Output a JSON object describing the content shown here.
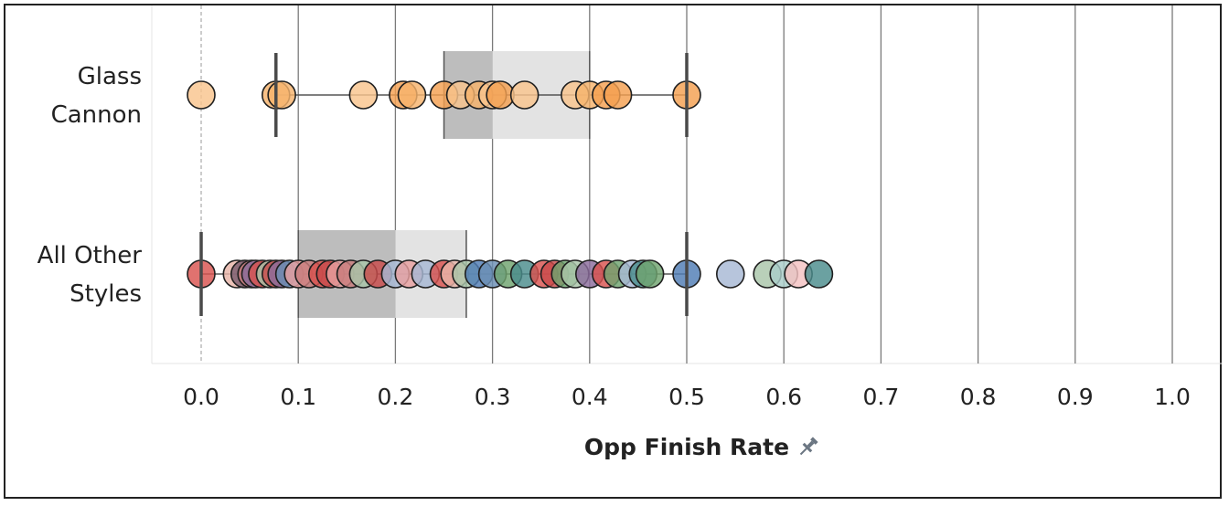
{
  "chart_data": {
    "type": "scatter",
    "subtype": "box-and-whisker with jittered dots",
    "xlabel": "Opp Finish Rate",
    "xlabel_icon": "pin-icon",
    "xlim": [
      -0.05,
      1.05
    ],
    "xticks": [
      "0.0",
      "0.1",
      "0.2",
      "0.3",
      "0.4",
      "0.5",
      "0.6",
      "0.7",
      "0.8",
      "0.9",
      "1.0"
    ],
    "xtick_values": [
      0.0,
      0.1,
      0.2,
      0.3,
      0.4,
      0.5,
      0.6,
      0.7,
      0.8,
      0.9,
      1.0
    ],
    "grid": true,
    "zero_line": "dashed",
    "categories": [
      {
        "label": [
          "Glass",
          "Cannon"
        ],
        "box": {
          "whisker_low": 0.077,
          "q1": 0.25,
          "median": 0.3,
          "q3": 0.4,
          "whisker_high": 0.5
        },
        "points": [
          {
            "x": 0.0,
            "color": "#F9C58E"
          },
          {
            "x": 0.077,
            "color": "#F7B36C"
          },
          {
            "x": 0.083,
            "color": "#F7B36C"
          },
          {
            "x": 0.167,
            "color": "#F9C58E"
          },
          {
            "x": 0.208,
            "color": "#F4A050"
          },
          {
            "x": 0.217,
            "color": "#F7B36C"
          },
          {
            "x": 0.25,
            "color": "#F4A050"
          },
          {
            "x": 0.267,
            "color": "#F9C58E"
          },
          {
            "x": 0.286,
            "color": "#F7B36C"
          },
          {
            "x": 0.3,
            "color": "#F9C58E"
          },
          {
            "x": 0.308,
            "color": "#F4A050"
          },
          {
            "x": 0.333,
            "color": "#F9C58E"
          },
          {
            "x": 0.385,
            "color": "#F9C58E"
          },
          {
            "x": 0.4,
            "color": "#F7B36C"
          },
          {
            "x": 0.417,
            "color": "#F4A050"
          },
          {
            "x": 0.429,
            "color": "#F4A050"
          },
          {
            "x": 0.5,
            "color": "#F4A050"
          }
        ]
      },
      {
        "label": [
          "All Other",
          "Styles"
        ],
        "box": {
          "whisker_low": 0.0,
          "q1": 0.1,
          "median": 0.2,
          "q3": 0.273,
          "whisker_high": 0.5
        },
        "points": [
          {
            "x": 0.0,
            "color": "#D9534F"
          },
          {
            "x": 0.037,
            "color": "#E8B4A8"
          },
          {
            "x": 0.045,
            "color": "#7A5C6E"
          },
          {
            "x": 0.052,
            "color": "#C97C7C"
          },
          {
            "x": 0.056,
            "color": "#8B6C9C"
          },
          {
            "x": 0.063,
            "color": "#D9534F"
          },
          {
            "x": 0.071,
            "color": "#A9C6A9"
          },
          {
            "x": 0.077,
            "color": "#C94C4C"
          },
          {
            "x": 0.083,
            "color": "#8B6C9C"
          },
          {
            "x": 0.091,
            "color": "#6B8FB5"
          },
          {
            "x": 0.1,
            "color": "#E8A0A0"
          },
          {
            "x": 0.111,
            "color": "#C97C7C"
          },
          {
            "x": 0.125,
            "color": "#D9534F"
          },
          {
            "x": 0.133,
            "color": "#C94C4C"
          },
          {
            "x": 0.143,
            "color": "#E8A0A0"
          },
          {
            "x": 0.154,
            "color": "#C97C7C"
          },
          {
            "x": 0.167,
            "color": "#A9C6A9"
          },
          {
            "x": 0.182,
            "color": "#C94C4C"
          },
          {
            "x": 0.2,
            "color": "#A7B8D4"
          },
          {
            "x": 0.214,
            "color": "#E8A0A0"
          },
          {
            "x": 0.231,
            "color": "#A7B8D4"
          },
          {
            "x": 0.25,
            "color": "#D9534F"
          },
          {
            "x": 0.261,
            "color": "#E8B4A8"
          },
          {
            "x": 0.273,
            "color": "#A9C6A9"
          },
          {
            "x": 0.286,
            "color": "#4F7CB5"
          },
          {
            "x": 0.3,
            "color": "#6B8FB5"
          },
          {
            "x": 0.316,
            "color": "#6FA36F"
          },
          {
            "x": 0.333,
            "color": "#4A8C8C"
          },
          {
            "x": 0.353,
            "color": "#D9534F"
          },
          {
            "x": 0.364,
            "color": "#C94C4C"
          },
          {
            "x": 0.375,
            "color": "#6FA36F"
          },
          {
            "x": 0.385,
            "color": "#A9C6A9"
          },
          {
            "x": 0.4,
            "color": "#8B6C9C"
          },
          {
            "x": 0.417,
            "color": "#D9534F"
          },
          {
            "x": 0.429,
            "color": "#6FA36F"
          },
          {
            "x": 0.444,
            "color": "#A7B8D4"
          },
          {
            "x": 0.455,
            "color": "#4A8C8C"
          },
          {
            "x": 0.462,
            "color": "#6FA36F"
          },
          {
            "x": 0.5,
            "color": "#4F7CB5"
          },
          {
            "x": 0.545,
            "color": "#A7B8D4"
          },
          {
            "x": 0.583,
            "color": "#A9C6A9"
          },
          {
            "x": 0.6,
            "color": "#A9CDC9"
          },
          {
            "x": 0.615,
            "color": "#F4C2C2"
          },
          {
            "x": 0.636,
            "color": "#4A8C8C"
          }
        ]
      }
    ]
  }
}
